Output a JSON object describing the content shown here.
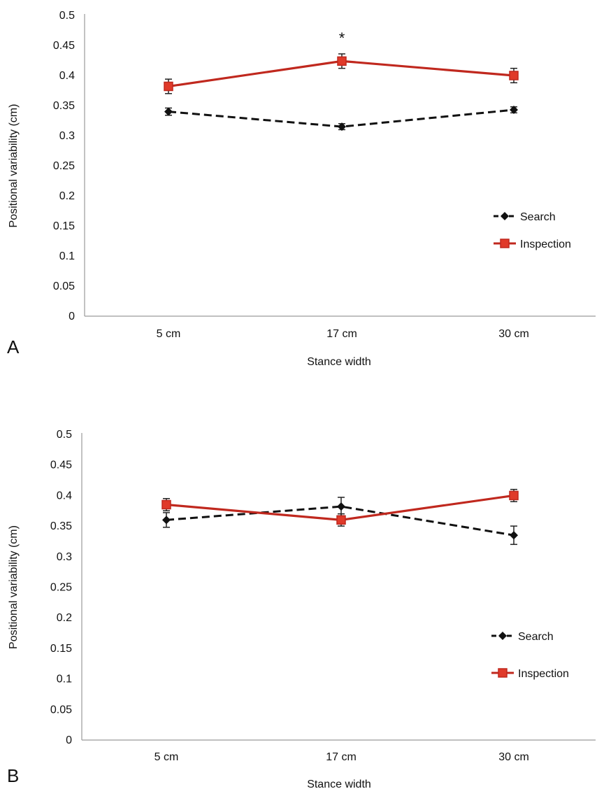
{
  "chart_data": [
    {
      "type": "line",
      "panel_label": "A",
      "categories": [
        "5 cm",
        "17 cm",
        "30 cm"
      ],
      "xlabel": "Stance width",
      "ylabel": "Positional variability (cm)",
      "ylim": [
        0,
        0.5
      ],
      "yticks": [
        "0",
        "0.05",
        "0.1",
        "0.15",
        "0.2",
        "0.25",
        "0.3",
        "0.35",
        "0.4",
        "0.45",
        "0.5"
      ],
      "grid": false,
      "legend_position": "right",
      "series": [
        {
          "name": "Search",
          "values": [
            0.34,
            0.315,
            0.343
          ],
          "errors": [
            0.006,
            0.005,
            0.005
          ],
          "color": "#111111",
          "dash": true,
          "marker": "diamond"
        },
        {
          "name": "Inspection",
          "values": [
            0.382,
            0.424,
            0.4
          ],
          "errors": [
            0.012,
            0.012,
            0.012
          ],
          "color": "#c0281e",
          "dash": false,
          "marker": "square"
        }
      ],
      "annotations": [
        {
          "text": "*",
          "category": "17 cm",
          "y": 0.465
        }
      ]
    },
    {
      "type": "line",
      "panel_label": "B",
      "categories": [
        "5 cm",
        "17 cm",
        "30 cm"
      ],
      "xlabel": "Stance width",
      "ylabel": "Positional variability (cm)",
      "ylim": [
        0,
        0.5
      ],
      "yticks": [
        "0",
        "0.05",
        "0.1",
        "0.15",
        "0.2",
        "0.25",
        "0.3",
        "0.35",
        "0.4",
        "0.45",
        "0.5"
      ],
      "grid": false,
      "legend_position": "right",
      "series": [
        {
          "name": "Search",
          "values": [
            0.36,
            0.382,
            0.335
          ],
          "errors": [
            0.012,
            0.015,
            0.015
          ],
          "color": "#111111",
          "dash": true,
          "marker": "diamond"
        },
        {
          "name": "Inspection",
          "values": [
            0.385,
            0.36,
            0.4
          ],
          "errors": [
            0.01,
            0.01,
            0.01
          ],
          "color": "#c0281e",
          "dash": false,
          "marker": "square"
        }
      ],
      "annotations": []
    }
  ]
}
